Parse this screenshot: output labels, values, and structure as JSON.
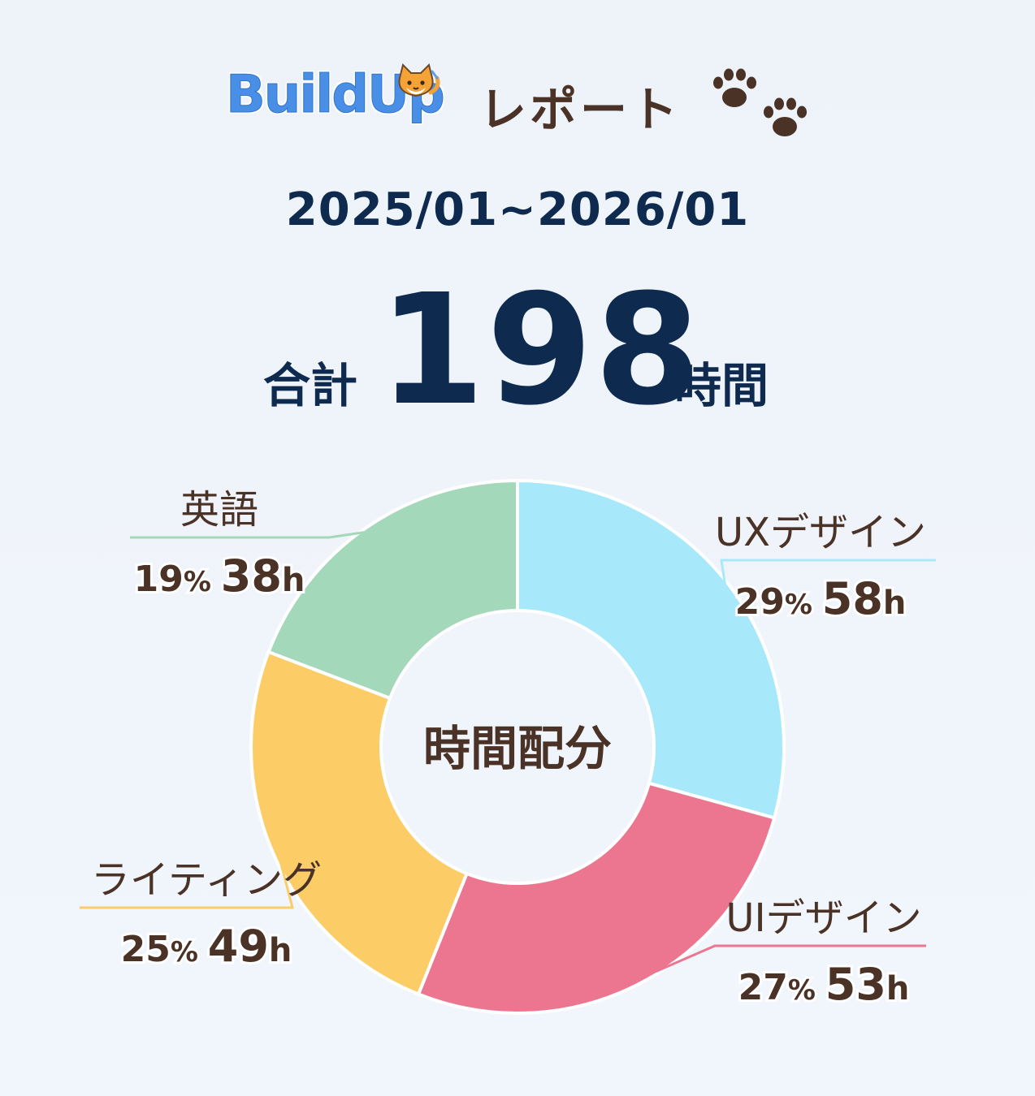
{
  "header": {
    "logo_text": "BuildUp",
    "title": "レポート"
  },
  "period": "2025/01~2026/01",
  "total": {
    "label": "合計",
    "value": "198",
    "unit": "時間"
  },
  "chart_data": {
    "type": "pie",
    "donut": true,
    "center_label": "時間配分",
    "unit": "h",
    "slices": [
      {
        "name": "UXデザイン",
        "percent": 29,
        "value": 58,
        "color": "#a7e9fb"
      },
      {
        "name": "UIデザイン",
        "percent": 27,
        "value": 53,
        "color": "#ec768f"
      },
      {
        "name": "ライティング",
        "percent": 25,
        "value": 49,
        "color": "#fccd67"
      },
      {
        "name": "英語",
        "percent": 19,
        "value": 38,
        "color": "#a3d8bb"
      }
    ]
  },
  "colors": {
    "text_dark": "#0f2a4f",
    "text_brown": "#4a3226",
    "logo_blue": "#4a8fe6"
  }
}
